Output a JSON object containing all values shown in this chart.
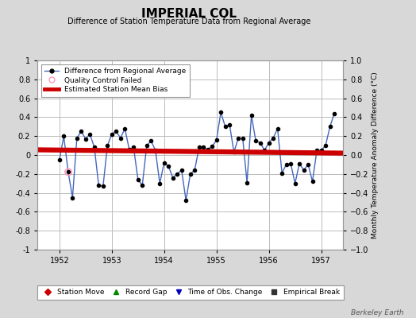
{
  "title": "IMPERIAL COL",
  "subtitle": "Difference of Station Temperature Data from Regional Average",
  "ylabel_right": "Monthly Temperature Anomaly Difference (°C)",
  "xlim": [
    1951.58,
    1957.42
  ],
  "ylim": [
    -1,
    1
  ],
  "yticks": [
    -1,
    -0.8,
    -0.6,
    -0.4,
    -0.2,
    0,
    0.2,
    0.4,
    0.6,
    0.8,
    1
  ],
  "xticks": [
    1952,
    1953,
    1954,
    1955,
    1956,
    1957
  ],
  "background_color": "#d8d8d8",
  "plot_bg_color": "#ffffff",
  "grid_color": "#bbbbbb",
  "line_color": "#4466bb",
  "marker_color": "#000000",
  "bias_line_color": "#cc0000",
  "bias_line_x": [
    1951.58,
    1957.42
  ],
  "bias_line_y": [
    0.055,
    0.02
  ],
  "qc_fail_x": [
    1952.17
  ],
  "qc_fail_y": [
    -0.18
  ],
  "data_x": [
    1952.0,
    1952.083,
    1952.167,
    1952.25,
    1952.333,
    1952.417,
    1952.5,
    1952.583,
    1952.667,
    1952.75,
    1952.833,
    1952.917,
    1953.0,
    1953.083,
    1953.167,
    1953.25,
    1953.333,
    1953.417,
    1953.5,
    1953.583,
    1953.667,
    1953.75,
    1953.833,
    1953.917,
    1954.0,
    1954.083,
    1954.167,
    1954.25,
    1954.333,
    1954.417,
    1954.5,
    1954.583,
    1954.667,
    1954.75,
    1954.833,
    1954.917,
    1955.0,
    1955.083,
    1955.167,
    1955.25,
    1955.333,
    1955.417,
    1955.5,
    1955.583,
    1955.667,
    1955.75,
    1955.833,
    1955.917,
    1956.0,
    1956.083,
    1956.167,
    1956.25,
    1956.333,
    1956.417,
    1956.5,
    1956.583,
    1956.667,
    1956.75,
    1956.833,
    1956.917,
    1957.0,
    1957.083,
    1957.167,
    1957.25
  ],
  "data_y": [
    -0.05,
    0.2,
    -0.18,
    -0.45,
    0.18,
    0.25,
    0.17,
    0.22,
    0.08,
    -0.32,
    -0.33,
    0.1,
    0.22,
    0.25,
    0.18,
    0.28,
    0.06,
    0.08,
    -0.26,
    -0.32,
    0.1,
    0.15,
    0.05,
    -0.3,
    -0.08,
    -0.12,
    -0.24,
    -0.2,
    -0.16,
    -0.48,
    -0.2,
    -0.16,
    0.08,
    0.08,
    0.06,
    0.09,
    0.16,
    0.45,
    0.3,
    0.32,
    0.03,
    0.18,
    0.18,
    -0.29,
    0.42,
    0.15,
    0.13,
    0.05,
    0.13,
    0.18,
    0.28,
    -0.19,
    -0.1,
    -0.09,
    -0.3,
    -0.09,
    -0.16,
    -0.1,
    -0.28,
    0.05,
    0.05,
    0.1,
    0.3,
    0.44
  ],
  "footer_text": "Berkeley Earth",
  "title_fontsize": 11,
  "subtitle_fontsize": 7,
  "tick_fontsize": 7,
  "ylabel_fontsize": 6.5,
  "legend_fontsize": 6.5
}
